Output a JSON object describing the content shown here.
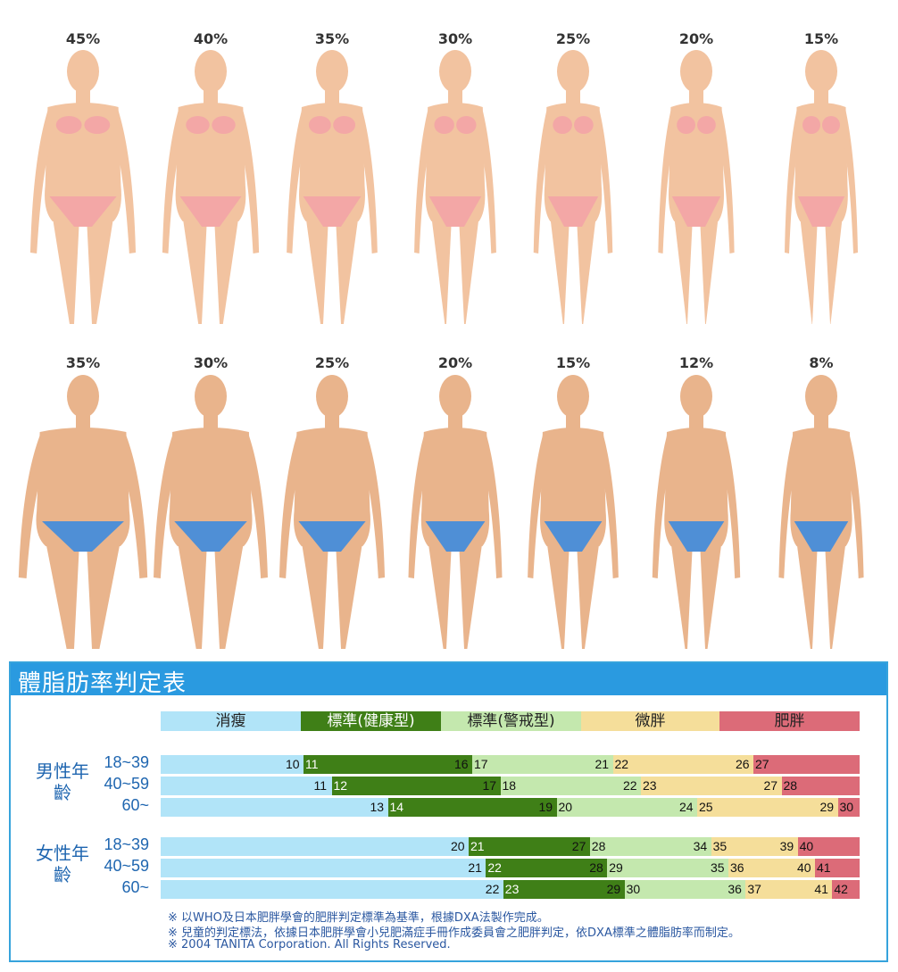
{
  "women_figures": {
    "percent_labels": [
      "45%",
      "40%",
      "35%",
      "30%",
      "25%",
      "20%",
      "15%"
    ],
    "skin_color": "#f2c3a0",
    "garment_color": "#f3a7a6"
  },
  "men_figures": {
    "percent_labels": [
      "35%",
      "30%",
      "25%",
      "20%",
      "15%",
      "12%",
      "8%"
    ],
    "skin_color": "#e9b48c",
    "garment_color": "#4f8fd6"
  },
  "table": {
    "title": "體脂肪率判定表",
    "header_color": "#2a9ae0",
    "categories": [
      {
        "label": "消瘦",
        "color": "#b1e4f8"
      },
      {
        "label": "標準(健康型)",
        "color": "#3f7f17"
      },
      {
        "label": "標準(警戒型)",
        "color": "#c4e8ae"
      },
      {
        "label": "微胖",
        "color": "#f5de9a"
      },
      {
        "label": "肥胖",
        "color": "#dc6b78"
      }
    ],
    "groups": [
      {
        "label": "男性年齡",
        "rows": [
          {
            "age": "18~39",
            "labels": [
              "10",
              "11",
              "16",
              "17",
              "21",
              "22",
              "26",
              "27"
            ]
          },
          {
            "age": "40~59",
            "labels": [
              "11",
              "12",
              "17",
              "18",
              "22",
              "23",
              "27",
              "28"
            ]
          },
          {
            "age": "60~",
            "labels": [
              "13",
              "14",
              "19",
              "20",
              "24",
              "25",
              "29",
              "30"
            ]
          }
        ]
      },
      {
        "label": "女性年齡",
        "rows": [
          {
            "age": "18~39",
            "labels": [
              "20",
              "21",
              "27",
              "28",
              "34",
              "35",
              "39",
              "40"
            ]
          },
          {
            "age": "40~59",
            "labels": [
              "21",
              "22",
              "28",
              "29",
              "35",
              "36",
              "40",
              "41"
            ]
          },
          {
            "age": "60~",
            "labels": [
              "22",
              "23",
              "29",
              "30",
              "36",
              "37",
              "41",
              "42"
            ]
          }
        ]
      }
    ],
    "notes": [
      "※ 以WHO及日本肥胖學會的肥胖判定標準為基準，根據DXA法製作完成。",
      "※ 兒童的判定標法，依據日本肥胖學會小兒肥滿症手冊作成委員會之肥胖判定，依DXA標準之體脂肪率而制定。",
      "※ 2004  TANITA Corporation. All Rights Reserved."
    ]
  },
  "chart_data": {
    "type": "table",
    "title": "體脂肪率判定表",
    "categories": [
      "消瘦",
      "標準(健康型)",
      "標準(警戒型)",
      "微胖",
      "肥胖"
    ],
    "rows": [
      {
        "group": "男性年齡",
        "age": "18~39",
        "bounds": [
          [
            10,
            11
          ],
          [
            16,
            17
          ],
          [
            21,
            22
          ],
          [
            26,
            27
          ]
        ]
      },
      {
        "group": "男性年齡",
        "age": "40~59",
        "bounds": [
          [
            11,
            12
          ],
          [
            17,
            18
          ],
          [
            22,
            23
          ],
          [
            27,
            28
          ]
        ]
      },
      {
        "group": "男性年齡",
        "age": "60~",
        "bounds": [
          [
            13,
            14
          ],
          [
            19,
            20
          ],
          [
            24,
            25
          ],
          [
            29,
            30
          ]
        ]
      },
      {
        "group": "女性年齡",
        "age": "18~39",
        "bounds": [
          [
            20,
            21
          ],
          [
            27,
            28
          ],
          [
            34,
            35
          ],
          [
            39,
            40
          ]
        ]
      },
      {
        "group": "女性年齡",
        "age": "40~59",
        "bounds": [
          [
            21,
            22
          ],
          [
            28,
            29
          ],
          [
            35,
            36
          ],
          [
            40,
            41
          ]
        ]
      },
      {
        "group": "女性年齡",
        "age": "60~",
        "bounds": [
          [
            22,
            23
          ],
          [
            29,
            30
          ],
          [
            36,
            37
          ],
          [
            41,
            42
          ]
        ]
      }
    ],
    "women_body_fat_levels": [
      45,
      40,
      35,
      30,
      25,
      20,
      15
    ],
    "men_body_fat_levels": [
      35,
      30,
      25,
      20,
      15,
      12,
      8
    ]
  }
}
